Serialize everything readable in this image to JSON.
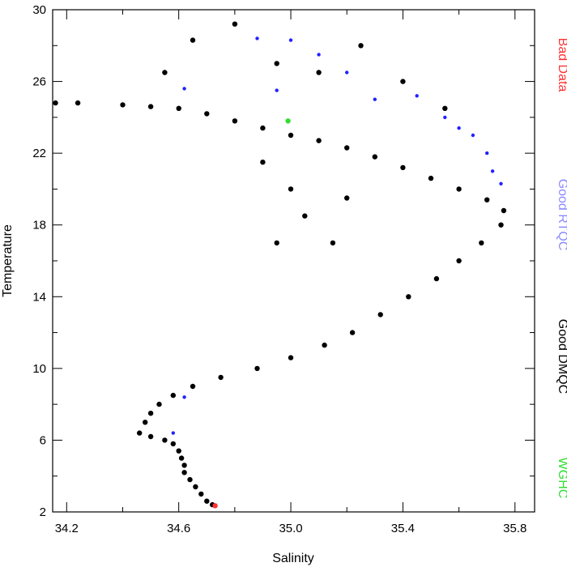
{
  "chart_data": {
    "type": "scatter",
    "xlabel": "Salinity",
    "ylabel": "Temperature",
    "xlim": [
      34.15,
      35.87
    ],
    "ylim": [
      2,
      30
    ],
    "xticks": [
      34.2,
      34.6,
      35.0,
      35.4,
      35.8
    ],
    "xtick_labels": [
      "34.2",
      "34.6",
      "35.0",
      "35.4",
      "35.8"
    ],
    "yticks": [
      2,
      6,
      10,
      14,
      18,
      22,
      26,
      30
    ],
    "ytick_labels": [
      "2",
      "6",
      "10",
      "14",
      "18",
      "22",
      "26",
      "30"
    ],
    "grid": false,
    "legend_placement": "right, outside plot, vertical",
    "legend": [
      {
        "label": "Bad Data",
        "color": "#ff3030"
      },
      {
        "label": "Good RTQC",
        "color": "#8a8aff"
      },
      {
        "label": "Good DMQC",
        "color": "#000000"
      },
      {
        "label": "WGHC",
        "color": "#33dd33"
      }
    ],
    "series": [
      {
        "name": "Good DMQC",
        "color": "#000000",
        "points": [
          [
            34.72,
            2.4
          ],
          [
            34.7,
            2.6
          ],
          [
            34.68,
            3.0
          ],
          [
            34.66,
            3.4
          ],
          [
            34.64,
            3.8
          ],
          [
            34.62,
            4.2
          ],
          [
            34.62,
            4.6
          ],
          [
            34.61,
            5.0
          ],
          [
            34.6,
            5.4
          ],
          [
            34.58,
            5.8
          ],
          [
            34.55,
            6.0
          ],
          [
            34.5,
            6.2
          ],
          [
            34.46,
            6.4
          ],
          [
            34.48,
            7.0
          ],
          [
            34.5,
            7.5
          ],
          [
            34.53,
            8.0
          ],
          [
            34.58,
            8.5
          ],
          [
            34.65,
            9.0
          ],
          [
            34.75,
            9.5
          ],
          [
            34.88,
            10.0
          ],
          [
            35.0,
            10.6
          ],
          [
            35.12,
            11.3
          ],
          [
            35.22,
            12.0
          ],
          [
            35.32,
            13.0
          ],
          [
            35.42,
            14.0
          ],
          [
            35.52,
            15.0
          ],
          [
            35.6,
            16.0
          ],
          [
            35.68,
            17.0
          ],
          [
            35.75,
            18.0
          ],
          [
            35.76,
            18.8
          ],
          [
            35.7,
            19.4
          ],
          [
            35.6,
            20.0
          ],
          [
            35.5,
            20.6
          ],
          [
            35.4,
            21.2
          ],
          [
            35.3,
            21.8
          ],
          [
            35.2,
            22.3
          ],
          [
            35.1,
            22.7
          ],
          [
            35.0,
            23.0
          ],
          [
            34.9,
            23.4
          ],
          [
            34.8,
            23.8
          ],
          [
            34.7,
            24.2
          ],
          [
            34.6,
            24.5
          ],
          [
            34.5,
            24.6
          ],
          [
            34.4,
            24.7
          ],
          [
            34.16,
            24.8
          ],
          [
            34.24,
            24.8
          ],
          [
            34.55,
            26.5
          ],
          [
            34.65,
            28.3
          ],
          [
            34.8,
            29.2
          ],
          [
            34.95,
            27.0
          ],
          [
            35.1,
            26.5
          ],
          [
            35.25,
            28.0
          ],
          [
            35.4,
            26.0
          ],
          [
            35.55,
            24.5
          ],
          [
            35.2,
            19.5
          ],
          [
            35.05,
            18.5
          ],
          [
            34.95,
            17.0
          ],
          [
            35.15,
            17.0
          ],
          [
            35.0,
            20.0
          ],
          [
            34.9,
            21.5
          ]
        ]
      },
      {
        "name": "Good RTQC",
        "color": "#2222ff",
        "points": [
          [
            34.88,
            28.4
          ],
          [
            35.0,
            28.3
          ],
          [
            35.1,
            27.5
          ],
          [
            35.2,
            26.5
          ],
          [
            34.95,
            25.5
          ],
          [
            35.45,
            25.2
          ],
          [
            35.55,
            24.0
          ],
          [
            35.6,
            23.4
          ],
          [
            35.65,
            23.0
          ],
          [
            35.7,
            22.0
          ],
          [
            35.72,
            21.0
          ],
          [
            35.75,
            20.3
          ],
          [
            34.62,
            25.6
          ],
          [
            35.3,
            25.0
          ],
          [
            34.58,
            6.4
          ],
          [
            34.62,
            8.4
          ]
        ]
      },
      {
        "name": "WGHC",
        "color": "#33dd33",
        "points": [
          [
            34.99,
            23.8
          ]
        ]
      },
      {
        "name": "Bad Data",
        "color": "#ff3030",
        "points": [
          [
            34.73,
            2.35
          ]
        ]
      }
    ]
  }
}
